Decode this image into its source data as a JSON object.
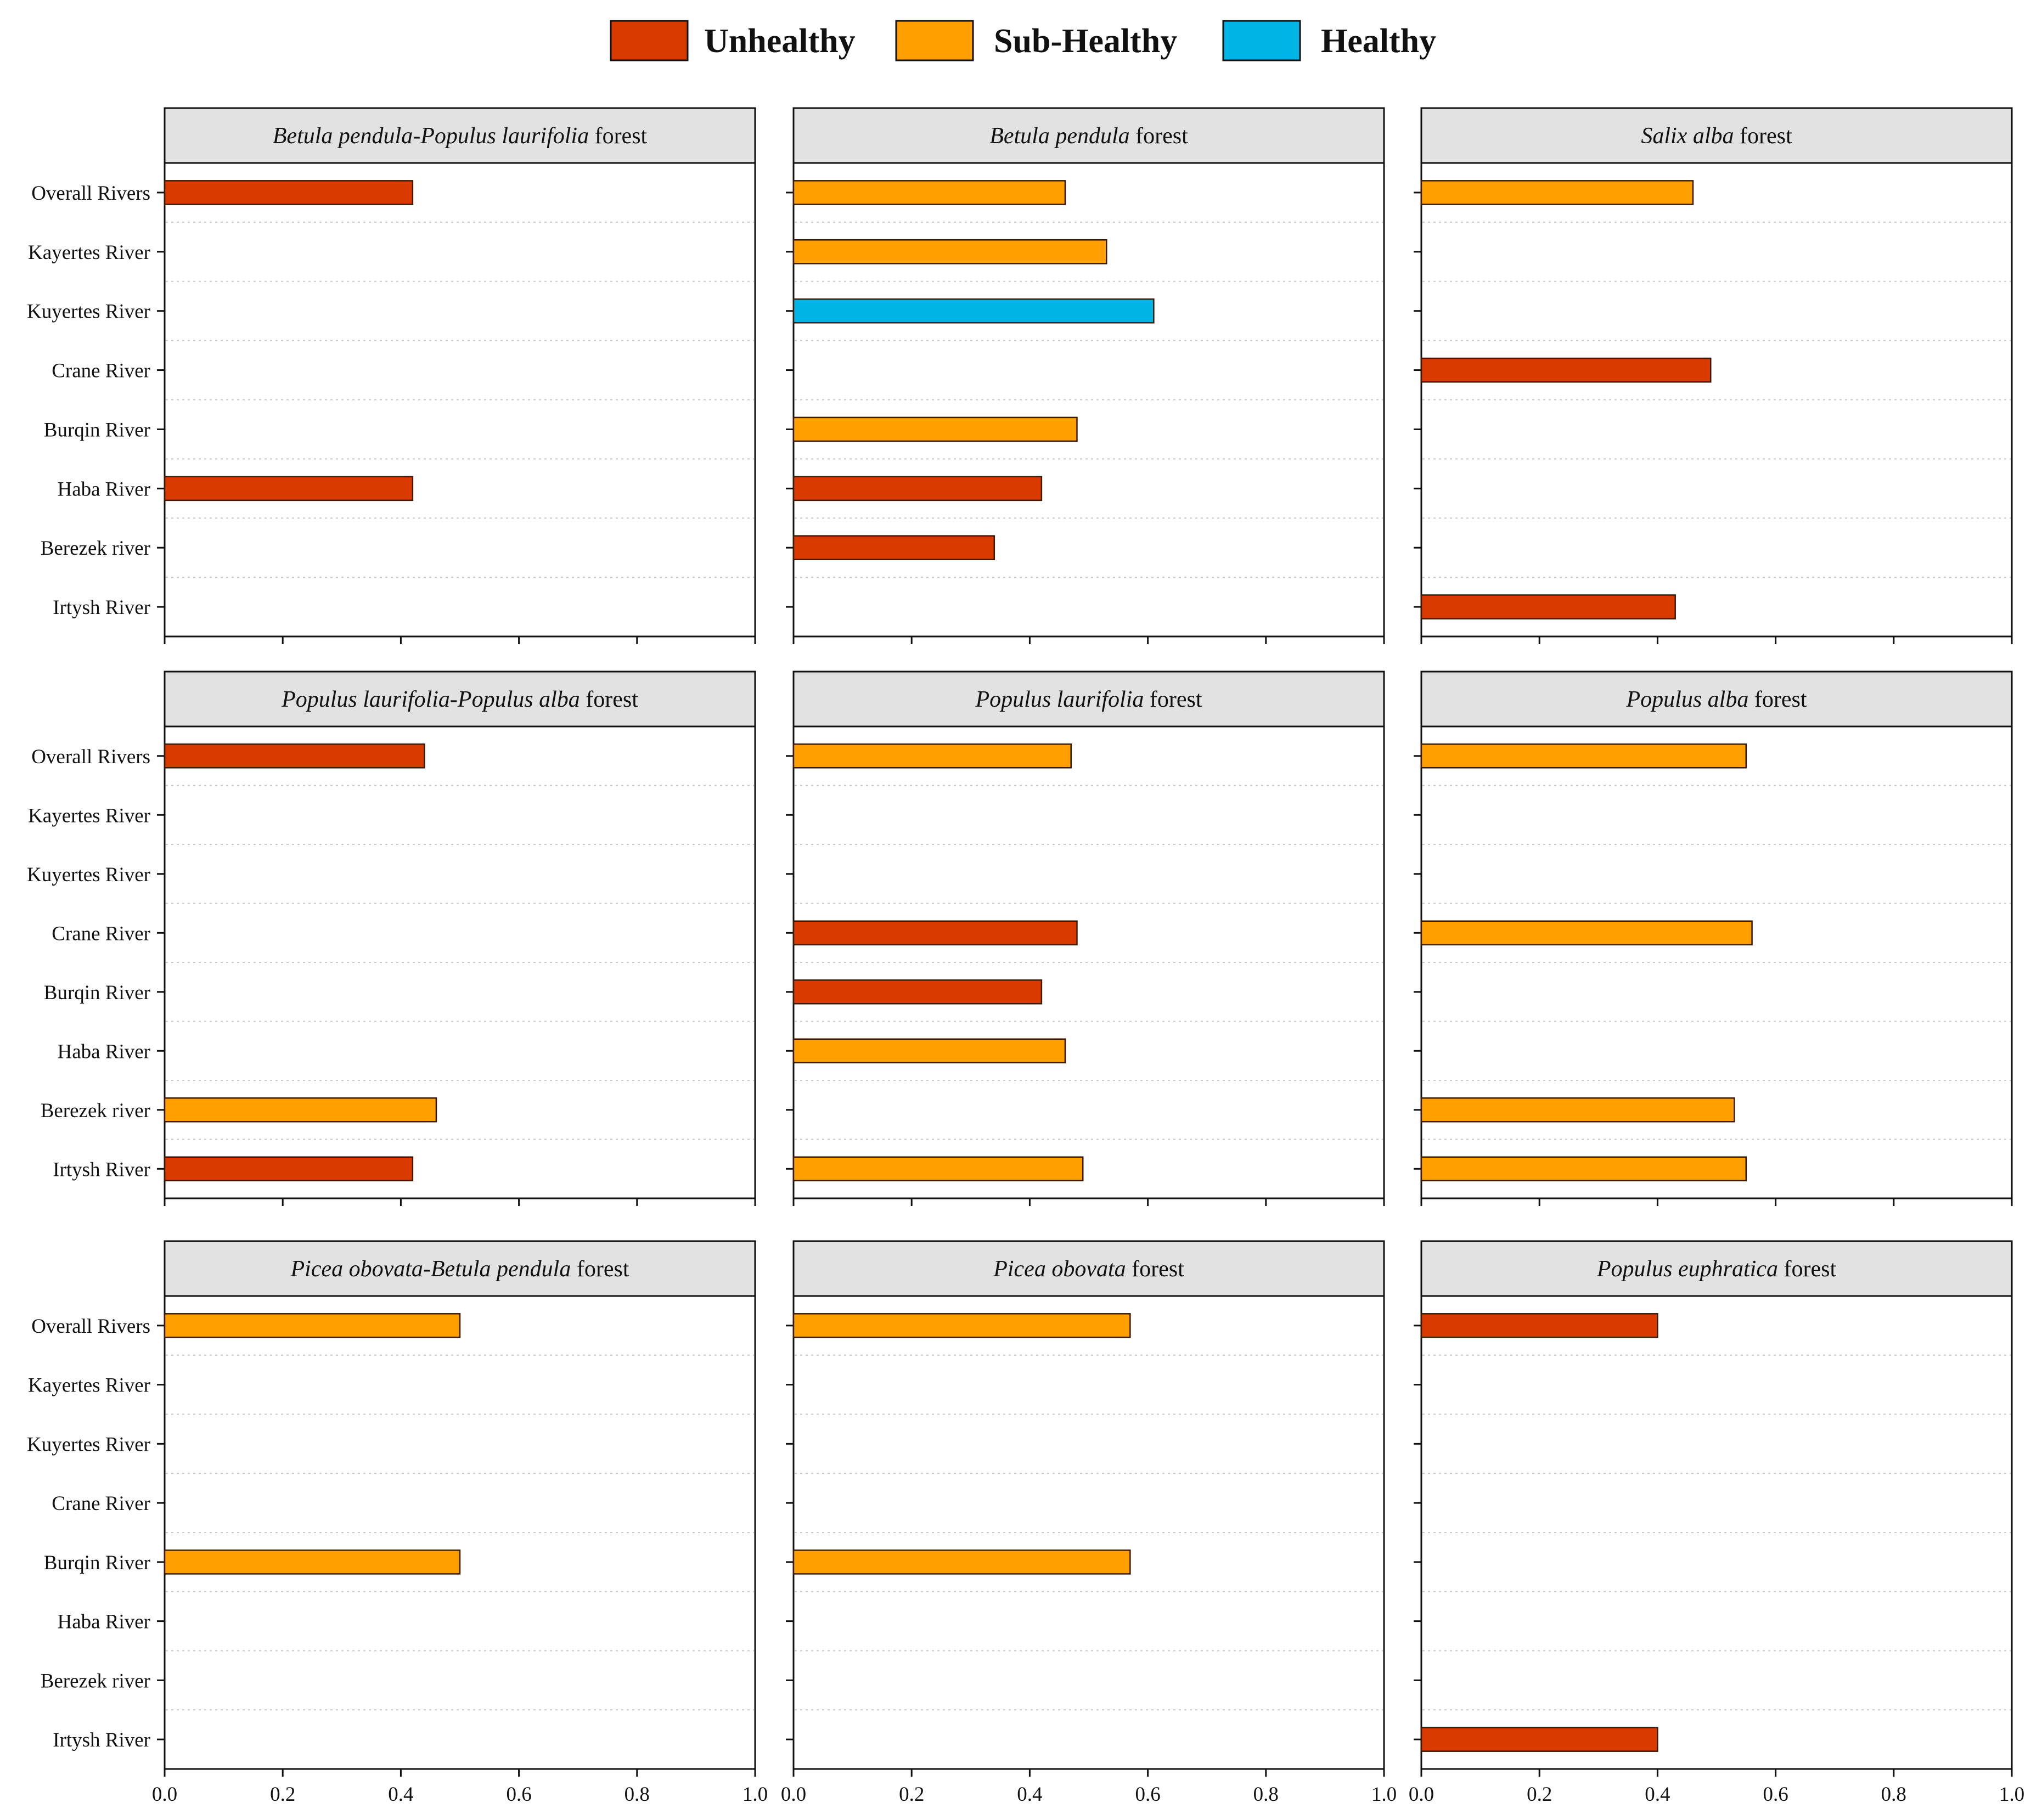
{
  "legend": {
    "items": [
      {
        "label": "Unhealthy",
        "status": "unhealthy"
      },
      {
        "label": "Sub-Healthy",
        "status": "subhealthy"
      },
      {
        "label": "Healthy",
        "status": "healthy"
      }
    ]
  },
  "colors": {
    "unhealthy": "#d93a00",
    "subhealthy": "#ffa000",
    "healthy": "#00b4e6",
    "panel_header": "#e2e2e2"
  },
  "chart_data": [
    {
      "type": "bar",
      "orientation": "horizontal",
      "title_italic": "Betula pendula-Populus laurifolia",
      "title_plain": " forest",
      "categories": [
        "Overall Rivers",
        "Kayertes River",
        "Kuyertes River",
        "Crane River",
        "Burqin River",
        "Haba River",
        "Berezek river",
        "Irtysh River"
      ],
      "values": [
        0.42,
        null,
        null,
        null,
        null,
        0.42,
        null,
        null
      ],
      "status": [
        "unhealthy",
        null,
        null,
        null,
        null,
        "unhealthy",
        null,
        null
      ],
      "xlim": [
        0,
        1.0
      ],
      "xticks": [
        0.0,
        0.2,
        0.4,
        0.6,
        0.8,
        1.0
      ],
      "xtick_labels": [
        "0.0",
        "0.2",
        "0.4",
        "0.6",
        "0.8",
        "1.0"
      ],
      "show_category_labels": true,
      "show_tick_labels": false
    },
    {
      "type": "bar",
      "orientation": "horizontal",
      "title_italic": "Betula pendula",
      "title_plain": " forest",
      "categories": [
        "Overall Rivers",
        "Kayertes River",
        "Kuyertes River",
        "Crane River",
        "Burqin River",
        "Haba River",
        "Berezek river",
        "Irtysh River"
      ],
      "values": [
        0.46,
        0.53,
        0.61,
        null,
        0.48,
        0.42,
        0.34,
        null
      ],
      "status": [
        "subhealthy",
        "subhealthy",
        "healthy",
        null,
        "subhealthy",
        "unhealthy",
        "unhealthy",
        null
      ],
      "xlim": [
        0,
        1.0
      ],
      "xticks": [
        0.0,
        0.2,
        0.4,
        0.6,
        0.8,
        1.0
      ],
      "xtick_labels": [
        "0.0",
        "0.2",
        "0.4",
        "0.6",
        "0.8",
        "1.0"
      ],
      "show_category_labels": false,
      "show_tick_labels": false
    },
    {
      "type": "bar",
      "orientation": "horizontal",
      "title_italic": "Salix alba",
      "title_plain": " forest",
      "categories": [
        "Overall Rivers",
        "Kayertes River",
        "Kuyertes River",
        "Crane River",
        "Burqin River",
        "Haba River",
        "Berezek river",
        "Irtysh River"
      ],
      "values": [
        0.46,
        null,
        null,
        0.49,
        null,
        null,
        null,
        0.43
      ],
      "status": [
        "subhealthy",
        null,
        null,
        "unhealthy",
        null,
        null,
        null,
        "unhealthy"
      ],
      "xlim": [
        0,
        1.0
      ],
      "xticks": [
        0.0,
        0.2,
        0.4,
        0.6,
        0.8,
        1.0
      ],
      "xtick_labels": [
        "0.0",
        "0.2",
        "0.4",
        "0.6",
        "0.8",
        "1.0"
      ],
      "show_category_labels": false,
      "show_tick_labels": false
    },
    {
      "type": "bar",
      "orientation": "horizontal",
      "title_italic": "Populus laurifolia-Populus alba",
      "title_plain": " forest",
      "categories": [
        "Overall Rivers",
        "Kayertes River",
        "Kuyertes River",
        "Crane River",
        "Burqin River",
        "Haba River",
        "Berezek river",
        "Irtysh River"
      ],
      "values": [
        0.44,
        null,
        null,
        null,
        null,
        null,
        0.46,
        0.42
      ],
      "status": [
        "unhealthy",
        null,
        null,
        null,
        null,
        null,
        "subhealthy",
        "unhealthy"
      ],
      "xlim": [
        0,
        1.0
      ],
      "xticks": [
        0.0,
        0.2,
        0.4,
        0.6,
        0.8,
        1.0
      ],
      "xtick_labels": [
        "0.0",
        "0.2",
        "0.4",
        "0.6",
        "0.8",
        "1.0"
      ],
      "show_category_labels": true,
      "show_tick_labels": false
    },
    {
      "type": "bar",
      "orientation": "horizontal",
      "title_italic": "Populus laurifolia",
      "title_plain": " forest",
      "categories": [
        "Overall Rivers",
        "Kayertes River",
        "Kuyertes River",
        "Crane River",
        "Burqin River",
        "Haba River",
        "Berezek river",
        "Irtysh River"
      ],
      "values": [
        0.47,
        null,
        null,
        0.48,
        0.42,
        0.46,
        null,
        0.49
      ],
      "status": [
        "subhealthy",
        null,
        null,
        "unhealthy",
        "unhealthy",
        "subhealthy",
        null,
        "subhealthy"
      ],
      "xlim": [
        0,
        1.0
      ],
      "xticks": [
        0.0,
        0.2,
        0.4,
        0.6,
        0.8,
        1.0
      ],
      "xtick_labels": [
        "0.0",
        "0.2",
        "0.4",
        "0.6",
        "0.8",
        "1.0"
      ],
      "show_category_labels": false,
      "show_tick_labels": false
    },
    {
      "type": "bar",
      "orientation": "horizontal",
      "title_italic": "Populus alba",
      "title_plain": " forest",
      "categories": [
        "Overall Rivers",
        "Kayertes River",
        "Kuyertes River",
        "Crane River",
        "Burqin River",
        "Haba River",
        "Berezek river",
        "Irtysh River"
      ],
      "values": [
        0.55,
        null,
        null,
        0.56,
        null,
        null,
        0.53,
        0.55
      ],
      "status": [
        "subhealthy",
        null,
        null,
        "subhealthy",
        null,
        null,
        "subhealthy",
        "subhealthy"
      ],
      "xlim": [
        0,
        1.0
      ],
      "xticks": [
        0.0,
        0.2,
        0.4,
        0.6,
        0.8,
        1.0
      ],
      "xtick_labels": [
        "0.0",
        "0.2",
        "0.4",
        "0.6",
        "0.8",
        "1.0"
      ],
      "show_category_labels": false,
      "show_tick_labels": false
    },
    {
      "type": "bar",
      "orientation": "horizontal",
      "title_italic": "Picea obovata-Betula pendula",
      "title_plain": " forest",
      "categories": [
        "Overall Rivers",
        "Kayertes River",
        "Kuyertes River",
        "Crane River",
        "Burqin River",
        "Haba River",
        "Berezek river",
        "Irtysh River"
      ],
      "values": [
        0.5,
        null,
        null,
        null,
        0.5,
        null,
        null,
        null
      ],
      "status": [
        "subhealthy",
        null,
        null,
        null,
        "subhealthy",
        null,
        null,
        null
      ],
      "xlim": [
        0,
        1.0
      ],
      "xticks": [
        0.0,
        0.2,
        0.4,
        0.6,
        0.8,
        1.0
      ],
      "xtick_labels": [
        "0.0",
        "0.2",
        "0.4",
        "0.6",
        "0.8",
        "1.0"
      ],
      "show_category_labels": true,
      "show_tick_labels": true
    },
    {
      "type": "bar",
      "orientation": "horizontal",
      "title_italic": "Picea obovata",
      "title_plain": " forest",
      "categories": [
        "Overall Rivers",
        "Kayertes River",
        "Kuyertes River",
        "Crane River",
        "Burqin River",
        "Haba River",
        "Berezek river",
        "Irtysh River"
      ],
      "values": [
        0.57,
        null,
        null,
        null,
        0.57,
        null,
        null,
        null
      ],
      "status": [
        "subhealthy",
        null,
        null,
        null,
        "subhealthy",
        null,
        null,
        null
      ],
      "xlim": [
        0,
        1.0
      ],
      "xticks": [
        0.0,
        0.2,
        0.4,
        0.6,
        0.8,
        1.0
      ],
      "xtick_labels": [
        "0.0",
        "0.2",
        "0.4",
        "0.6",
        "0.8",
        "1.0"
      ],
      "show_category_labels": false,
      "show_tick_labels": true
    },
    {
      "type": "bar",
      "orientation": "horizontal",
      "title_italic": "Populus euphratica",
      "title_plain": " forest",
      "categories": [
        "Overall Rivers",
        "Kayertes River",
        "Kuyertes River",
        "Crane River",
        "Burqin River",
        "Haba River",
        "Berezek river",
        "Irtysh River"
      ],
      "values": [
        0.4,
        null,
        null,
        null,
        null,
        null,
        null,
        0.4
      ],
      "status": [
        "unhealthy",
        null,
        null,
        null,
        null,
        null,
        null,
        "unhealthy"
      ],
      "xlim": [
        0,
        1.0
      ],
      "xticks": [
        0.0,
        0.2,
        0.4,
        0.6,
        0.8,
        1.0
      ],
      "xtick_labels": [
        "0.0",
        "0.2",
        "0.4",
        "0.6",
        "0.8",
        "1.0"
      ],
      "show_category_labels": false,
      "show_tick_labels": true
    }
  ]
}
